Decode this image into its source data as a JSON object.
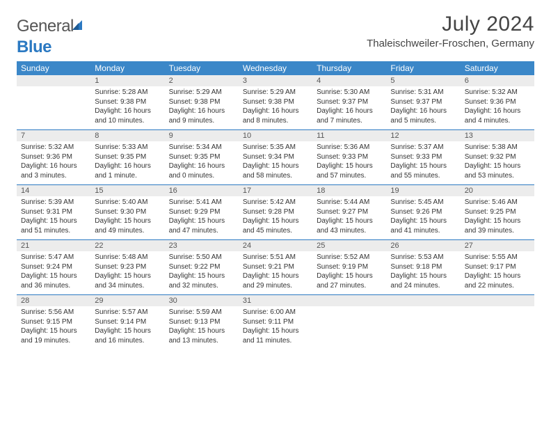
{
  "brand": {
    "part1": "General",
    "part2": "Blue"
  },
  "title": "July 2024",
  "location": "Thaleischweiler-Froschen, Germany",
  "colors": {
    "header_bg": "#3b87c8",
    "header_text": "#ffffff",
    "daynum_bg": "#ececec",
    "sep": "#2b79c2",
    "text": "#333333",
    "brand_gray": "#555555",
    "brand_blue": "#2b79c2"
  },
  "day_names": [
    "Sunday",
    "Monday",
    "Tuesday",
    "Wednesday",
    "Thursday",
    "Friday",
    "Saturday"
  ],
  "weeks": [
    {
      "nums": [
        "",
        "1",
        "2",
        "3",
        "4",
        "5",
        "6"
      ],
      "cells": [
        [],
        [
          "Sunrise: 5:28 AM",
          "Sunset: 9:38 PM",
          "Daylight: 16 hours",
          "and 10 minutes."
        ],
        [
          "Sunrise: 5:29 AM",
          "Sunset: 9:38 PM",
          "Daylight: 16 hours",
          "and 9 minutes."
        ],
        [
          "Sunrise: 5:29 AM",
          "Sunset: 9:38 PM",
          "Daylight: 16 hours",
          "and 8 minutes."
        ],
        [
          "Sunrise: 5:30 AM",
          "Sunset: 9:37 PM",
          "Daylight: 16 hours",
          "and 7 minutes."
        ],
        [
          "Sunrise: 5:31 AM",
          "Sunset: 9:37 PM",
          "Daylight: 16 hours",
          "and 5 minutes."
        ],
        [
          "Sunrise: 5:32 AM",
          "Sunset: 9:36 PM",
          "Daylight: 16 hours",
          "and 4 minutes."
        ]
      ]
    },
    {
      "nums": [
        "7",
        "8",
        "9",
        "10",
        "11",
        "12",
        "13"
      ],
      "cells": [
        [
          "Sunrise: 5:32 AM",
          "Sunset: 9:36 PM",
          "Daylight: 16 hours",
          "and 3 minutes."
        ],
        [
          "Sunrise: 5:33 AM",
          "Sunset: 9:35 PM",
          "Daylight: 16 hours",
          "and 1 minute."
        ],
        [
          "Sunrise: 5:34 AM",
          "Sunset: 9:35 PM",
          "Daylight: 16 hours",
          "and 0 minutes."
        ],
        [
          "Sunrise: 5:35 AM",
          "Sunset: 9:34 PM",
          "Daylight: 15 hours",
          "and 58 minutes."
        ],
        [
          "Sunrise: 5:36 AM",
          "Sunset: 9:33 PM",
          "Daylight: 15 hours",
          "and 57 minutes."
        ],
        [
          "Sunrise: 5:37 AM",
          "Sunset: 9:33 PM",
          "Daylight: 15 hours",
          "and 55 minutes."
        ],
        [
          "Sunrise: 5:38 AM",
          "Sunset: 9:32 PM",
          "Daylight: 15 hours",
          "and 53 minutes."
        ]
      ]
    },
    {
      "nums": [
        "14",
        "15",
        "16",
        "17",
        "18",
        "19",
        "20"
      ],
      "cells": [
        [
          "Sunrise: 5:39 AM",
          "Sunset: 9:31 PM",
          "Daylight: 15 hours",
          "and 51 minutes."
        ],
        [
          "Sunrise: 5:40 AM",
          "Sunset: 9:30 PM",
          "Daylight: 15 hours",
          "and 49 minutes."
        ],
        [
          "Sunrise: 5:41 AM",
          "Sunset: 9:29 PM",
          "Daylight: 15 hours",
          "and 47 minutes."
        ],
        [
          "Sunrise: 5:42 AM",
          "Sunset: 9:28 PM",
          "Daylight: 15 hours",
          "and 45 minutes."
        ],
        [
          "Sunrise: 5:44 AM",
          "Sunset: 9:27 PM",
          "Daylight: 15 hours",
          "and 43 minutes."
        ],
        [
          "Sunrise: 5:45 AM",
          "Sunset: 9:26 PM",
          "Daylight: 15 hours",
          "and 41 minutes."
        ],
        [
          "Sunrise: 5:46 AM",
          "Sunset: 9:25 PM",
          "Daylight: 15 hours",
          "and 39 minutes."
        ]
      ]
    },
    {
      "nums": [
        "21",
        "22",
        "23",
        "24",
        "25",
        "26",
        "27"
      ],
      "cells": [
        [
          "Sunrise: 5:47 AM",
          "Sunset: 9:24 PM",
          "Daylight: 15 hours",
          "and 36 minutes."
        ],
        [
          "Sunrise: 5:48 AM",
          "Sunset: 9:23 PM",
          "Daylight: 15 hours",
          "and 34 minutes."
        ],
        [
          "Sunrise: 5:50 AM",
          "Sunset: 9:22 PM",
          "Daylight: 15 hours",
          "and 32 minutes."
        ],
        [
          "Sunrise: 5:51 AM",
          "Sunset: 9:21 PM",
          "Daylight: 15 hours",
          "and 29 minutes."
        ],
        [
          "Sunrise: 5:52 AM",
          "Sunset: 9:19 PM",
          "Daylight: 15 hours",
          "and 27 minutes."
        ],
        [
          "Sunrise: 5:53 AM",
          "Sunset: 9:18 PM",
          "Daylight: 15 hours",
          "and 24 minutes."
        ],
        [
          "Sunrise: 5:55 AM",
          "Sunset: 9:17 PM",
          "Daylight: 15 hours",
          "and 22 minutes."
        ]
      ]
    },
    {
      "nums": [
        "28",
        "29",
        "30",
        "31",
        "",
        "",
        ""
      ],
      "cells": [
        [
          "Sunrise: 5:56 AM",
          "Sunset: 9:15 PM",
          "Daylight: 15 hours",
          "and 19 minutes."
        ],
        [
          "Sunrise: 5:57 AM",
          "Sunset: 9:14 PM",
          "Daylight: 15 hours",
          "and 16 minutes."
        ],
        [
          "Sunrise: 5:59 AM",
          "Sunset: 9:13 PM",
          "Daylight: 15 hours",
          "and 13 minutes."
        ],
        [
          "Sunrise: 6:00 AM",
          "Sunset: 9:11 PM",
          "Daylight: 15 hours",
          "and 11 minutes."
        ],
        [],
        [],
        []
      ]
    }
  ]
}
